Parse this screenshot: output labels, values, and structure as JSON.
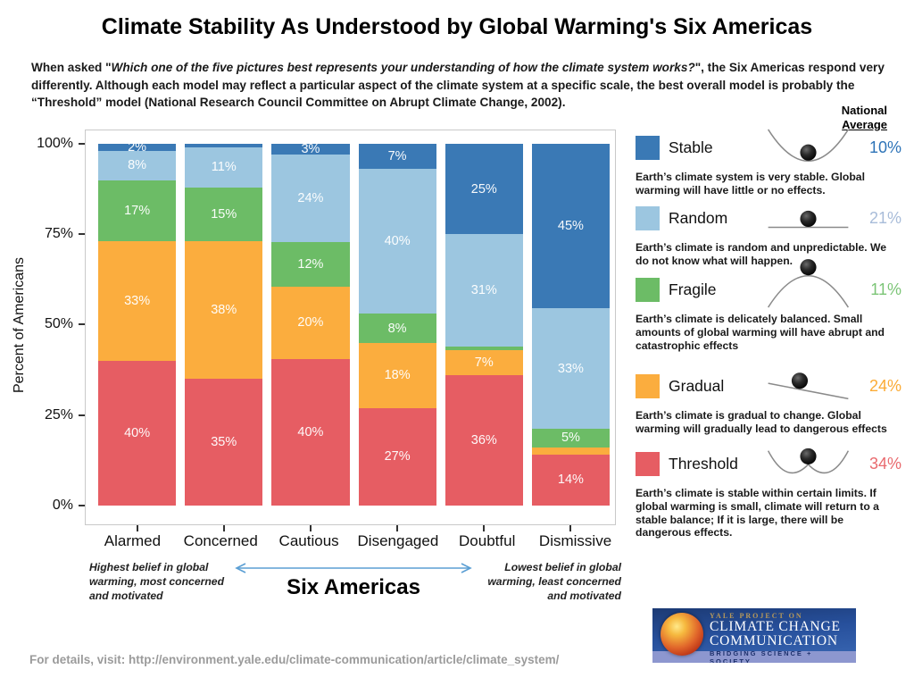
{
  "title": "Climate Stability As Understood by Global Warming's Six Americas",
  "intro": {
    "prefix": "When asked \"",
    "quote": "Which one of the five pictures best represents your understanding of how the climate system works?",
    "suffix": "\", the Six Americas respond very differently. Although each model may reflect a particular aspect of the climate system at a specific scale, the best overall model is probably the “Threshold” model (National Research Council Committee on Abrupt Climate Change, 2002)."
  },
  "y_axis": {
    "label": "Percent of Americans",
    "ticks": [
      "100%",
      "75%",
      "50%",
      "25%",
      "0%"
    ]
  },
  "x_axis_title": "Six Americas",
  "annotations": {
    "left": "Highest belief in global warming, most concerned and motivated",
    "right": "Lowest belief in global warming, least concerned and motivated"
  },
  "national_average": {
    "line1": "National",
    "line2": "Average"
  },
  "chart_data": {
    "type": "bar",
    "stacked": true,
    "title": "Climate Stability As Understood by Global Warming's Six Americas",
    "xlabel": "Six Americas",
    "ylabel": "Percent of Americans",
    "ylim": [
      0,
      100
    ],
    "yticks": [
      "0%",
      "25%",
      "50%",
      "75%",
      "100%"
    ],
    "categories": [
      "Alarmed",
      "Concerned",
      "Cautious",
      "Disengaged",
      "Doubtful",
      "Dismissive"
    ],
    "series": [
      {
        "name": "Threshold",
        "color": "#e65d63",
        "values": [
          40,
          35,
          40,
          27,
          36,
          14
        ],
        "labels": [
          "40%",
          "35%",
          "40%",
          "27%",
          "36%",
          "14%"
        ]
      },
      {
        "name": "Gradual",
        "color": "#fbad3e",
        "values": [
          33,
          38,
          20,
          18,
          7,
          2
        ],
        "labels": [
          "33%",
          "38%",
          "20%",
          "18%",
          "7%",
          ""
        ]
      },
      {
        "name": "Fragile",
        "color": "#6cbc66",
        "values": [
          17,
          15,
          12,
          8,
          1,
          5
        ],
        "labels": [
          "17%",
          "15%",
          "12%",
          "8%",
          "",
          "5%"
        ]
      },
      {
        "name": "Random",
        "color": "#9cc6e0",
        "values": [
          8,
          11,
          24,
          40,
          31,
          33
        ],
        "labels": [
          "8%",
          "11%",
          "24%",
          "40%",
          "31%",
          "33%"
        ]
      },
      {
        "name": "Stable",
        "color": "#3a79b5",
        "values": [
          2,
          1,
          3,
          7,
          25,
          45
        ],
        "labels": [
          "2%",
          "",
          "3%",
          "7%",
          "25%",
          "45%"
        ]
      }
    ]
  },
  "legend": {
    "items": [
      {
        "name": "Stable",
        "color": "#3a79b5",
        "pct": "10%",
        "pct_color": "#2e74b8",
        "curve": "valley",
        "desc": "Earth’s climate system is very stable. Global warming will have little or no effects."
      },
      {
        "name": "Random",
        "color": "#9cc6e0",
        "pct": "21%",
        "pct_color": "#a8bcd9",
        "curve": "flat",
        "desc": "Earth’s climate is random and unpredictable. We do not know what will happen."
      },
      {
        "name": "Fragile",
        "color": "#6cbc66",
        "pct": "11%",
        "pct_color": "#7cc577",
        "curve": "hill",
        "desc": "Earth’s climate is delicately balanced. Small amounts of global warming will have abrupt and catastrophic effects"
      },
      {
        "name": "Gradual",
        "color": "#fbad3e",
        "pct": "24%",
        "pct_color": "#fbab36",
        "curve": "slope",
        "desc": "Earth’s climate is gradual to change. Global warming will gradually lead to dangerous effects"
      },
      {
        "name": "Threshold",
        "color": "#e65d63",
        "pct": "34%",
        "pct_color": "#e96a6e",
        "curve": "double-well",
        "desc": "Earth’s climate is stable within certain limits. If global warming is small, climate will return to a stable balance; If it is large, there will be dangerous effects."
      }
    ]
  },
  "logo": {
    "line1": "YALE PROJECT ON",
    "line2": "CLIMATE CHANGE",
    "line3": "COMMUNICATION",
    "line4": "BRIDGING SCIENCE + SOCIETY"
  },
  "footer": "For details, visit: http://environment.yale.edu/climate-communication/article/climate_system/"
}
